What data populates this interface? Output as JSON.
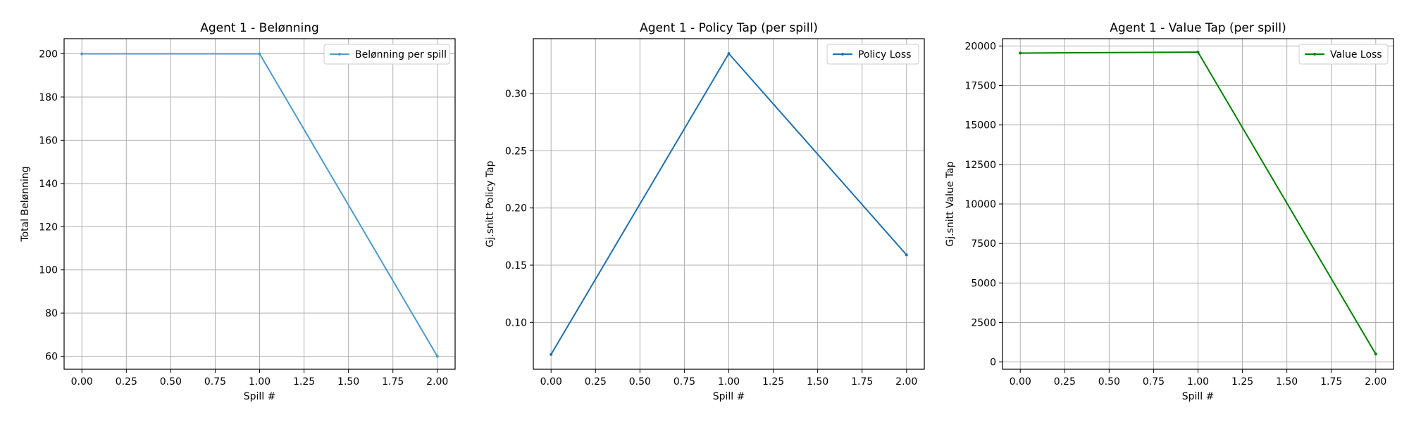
{
  "chart_data": [
    {
      "type": "line",
      "title": "Agent 1 - Belønning",
      "xlabel": "Spill #",
      "ylabel": "Total Belønning",
      "x": [
        0,
        1,
        2
      ],
      "series": [
        {
          "name": "Belønning per spill",
          "values": [
            200,
            200,
            60
          ],
          "color": "#4c9ac9"
        }
      ],
      "xlim": [
        -0.1,
        2.1
      ],
      "ylim": [
        54,
        207
      ],
      "xticks": [
        "0.00",
        "0.25",
        "0.50",
        "0.75",
        "1.00",
        "1.25",
        "1.50",
        "1.75",
        "2.00"
      ],
      "yticks": [
        "60",
        "80",
        "100",
        "120",
        "140",
        "160",
        "180",
        "200"
      ],
      "grid": true,
      "legend": "top-right"
    },
    {
      "type": "line",
      "title": "Agent 1 - Policy Tap (per spill)",
      "xlabel": "Spill #",
      "ylabel": "Gj.snitt Policy Tap",
      "x": [
        0,
        1,
        2
      ],
      "series": [
        {
          "name": "Policy Loss",
          "values": [
            0.072,
            0.335,
            0.159
          ],
          "color": "#1f6fad"
        }
      ],
      "xlim": [
        -0.1,
        2.1
      ],
      "ylim": [
        0.059,
        0.348
      ],
      "xticks": [
        "0.00",
        "0.25",
        "0.50",
        "0.75",
        "1.00",
        "1.25",
        "1.50",
        "1.75",
        "2.00"
      ],
      "yticks": [
        "0.10",
        "0.15",
        "0.20",
        "0.25",
        "0.30"
      ],
      "grid": true,
      "legend": "top-right"
    },
    {
      "type": "line",
      "title": "Agent 1 - Value Tap (per spill)",
      "xlabel": "Spill #",
      "ylabel": "Gj.snitt Value Tap",
      "x": [
        0,
        1,
        2
      ],
      "series": [
        {
          "name": "Value Loss",
          "values": [
            19550,
            19610,
            500
          ],
          "color": "#008000"
        }
      ],
      "xlim": [
        -0.1,
        2.1
      ],
      "ylim": [
        -460,
        20460
      ],
      "xticks": [
        "0.00",
        "0.25",
        "0.50",
        "0.75",
        "1.00",
        "1.25",
        "1.50",
        "1.75",
        "2.00"
      ],
      "yticks": [
        "0",
        "2500",
        "5000",
        "7500",
        "10000",
        "12500",
        "15000",
        "17500",
        "20000"
      ],
      "grid": true,
      "legend": "top-right"
    }
  ]
}
